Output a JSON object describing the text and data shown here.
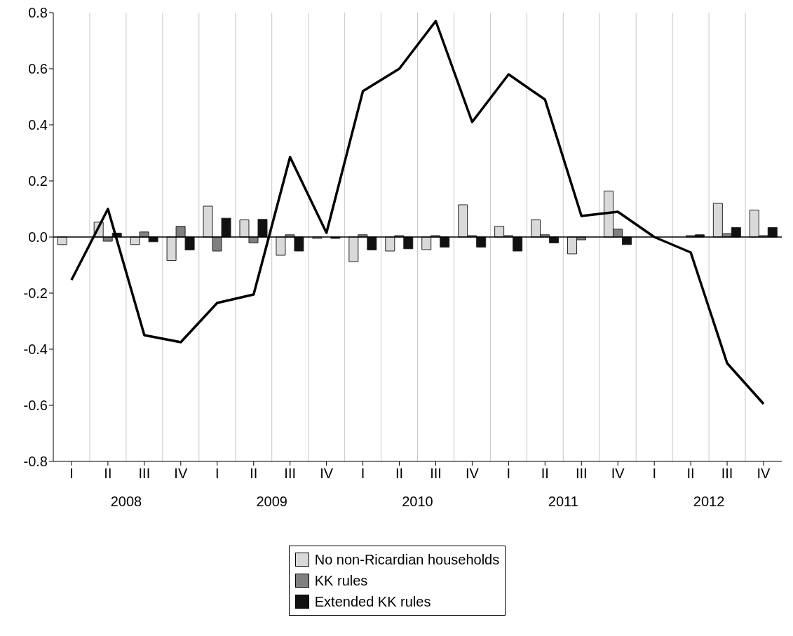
{
  "chart_data": {
    "type": "bar",
    "categories": [
      "I",
      "II",
      "III",
      "IV",
      "I",
      "II",
      "III",
      "IV",
      "I",
      "II",
      "III",
      "IV",
      "I",
      "II",
      "III",
      "IV",
      "I",
      "II",
      "III",
      "IV"
    ],
    "annotations": [
      "2008",
      "2009",
      "2010",
      "2011",
      "2012"
    ],
    "series": [
      {
        "name": "No non-Ricardian households",
        "color": "#d9d9d9",
        "values": [
          -0.027,
          0.053,
          -0.027,
          -0.084,
          0.11,
          0.061,
          -0.065,
          -0.005,
          -0.088,
          -0.05,
          -0.045,
          0.115,
          0.038,
          0.061,
          -0.06,
          0.164,
          null,
          0,
          0.12,
          0.096
        ]
      },
      {
        "name": "KK rules",
        "color": "#808080",
        "values": [
          0,
          -0.015,
          0.018,
          0.038,
          -0.05,
          -0.021,
          0.008,
          0,
          0.008,
          0.005,
          0.005,
          0.005,
          0.005,
          0.008,
          -0.01,
          0.028,
          null,
          0.005,
          0.012,
          0.005
        ]
      },
      {
        "name": "Extended KK rules",
        "color": "#111111",
        "values": [
          0,
          0.014,
          -0.017,
          -0.046,
          0.067,
          0.063,
          -0.05,
          -0.005,
          -0.046,
          -0.042,
          -0.036,
          -0.036,
          -0.05,
          -0.021,
          0,
          -0.027,
          null,
          0.008,
          0.034,
          0.034
        ]
      },
      {
        "type": "line",
        "color": "#000000",
        "values": [
          -0.153,
          0.1,
          -0.35,
          -0.375,
          -0.235,
          -0.205,
          0.285,
          0.015,
          0.52,
          0.6,
          0.77,
          0.41,
          0.58,
          0.49,
          0.075,
          0.09,
          0,
          -0.055,
          -0.45,
          -0.595
        ]
      }
    ],
    "ylim": [
      -0.8,
      0.8
    ],
    "yticks": [
      -0.8,
      -0.6,
      -0.4,
      -0.2,
      {
        "value": 0,
        "label": "0.0"
      },
      0.2,
      0.4,
      0.6,
      0.8
    ],
    "ref_lines": [
      {
        "axis": "y",
        "value": 0
      }
    ],
    "grid": "x",
    "legend": "bottom",
    "marker": "none",
    "line_style": "solid"
  }
}
